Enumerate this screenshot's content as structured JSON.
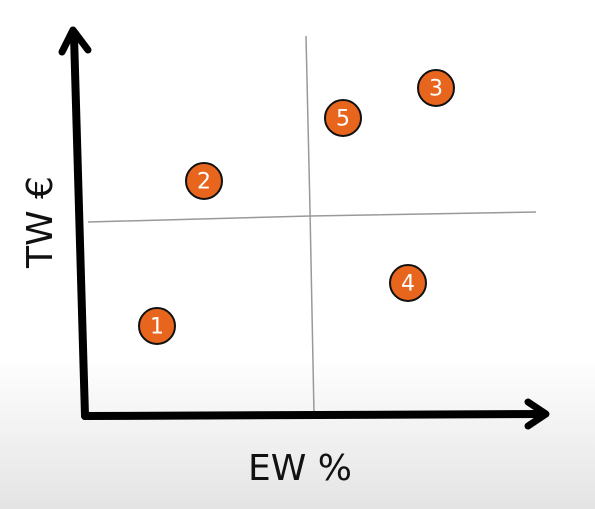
{
  "x_axis": {
    "label": "EW %"
  },
  "y_axis": {
    "label": "TW €"
  },
  "nodes": [
    {
      "label": "1"
    },
    {
      "label": "2"
    },
    {
      "label": "3"
    },
    {
      "label": "4"
    },
    {
      "label": "5"
    }
  ]
}
